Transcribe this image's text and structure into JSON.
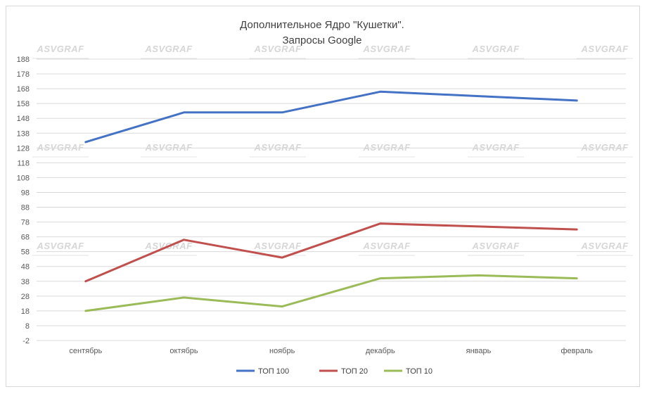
{
  "chart_data": {
    "type": "line",
    "title": "Дополнительное Ядро \"Кушетки\".",
    "subtitle": "Запросы Google",
    "categories": [
      "сентябрь",
      "октябрь",
      "ноябрь",
      "декабрь",
      "январь",
      "февраль"
    ],
    "series": [
      {
        "name": "ТОП 100",
        "color": "#4472C4",
        "values": [
          132,
          152,
          152,
          166,
          163,
          160
        ]
      },
      {
        "name": "ТОП 20",
        "color": "#C0504D",
        "values": [
          38,
          66,
          54,
          77,
          75,
          73
        ]
      },
      {
        "name": "ТОП 10",
        "color": "#9BBB59",
        "values": [
          18,
          27,
          21,
          40,
          42,
          40
        ]
      }
    ],
    "yticks": [
      -2,
      8,
      18,
      28,
      38,
      48,
      58,
      68,
      78,
      88,
      98,
      108,
      118,
      128,
      138,
      148,
      158,
      168,
      178,
      188
    ],
    "ylim": [
      -2,
      188
    ],
    "grid": true,
    "legend_position": "bottom",
    "watermark": "ASVGRAF"
  }
}
